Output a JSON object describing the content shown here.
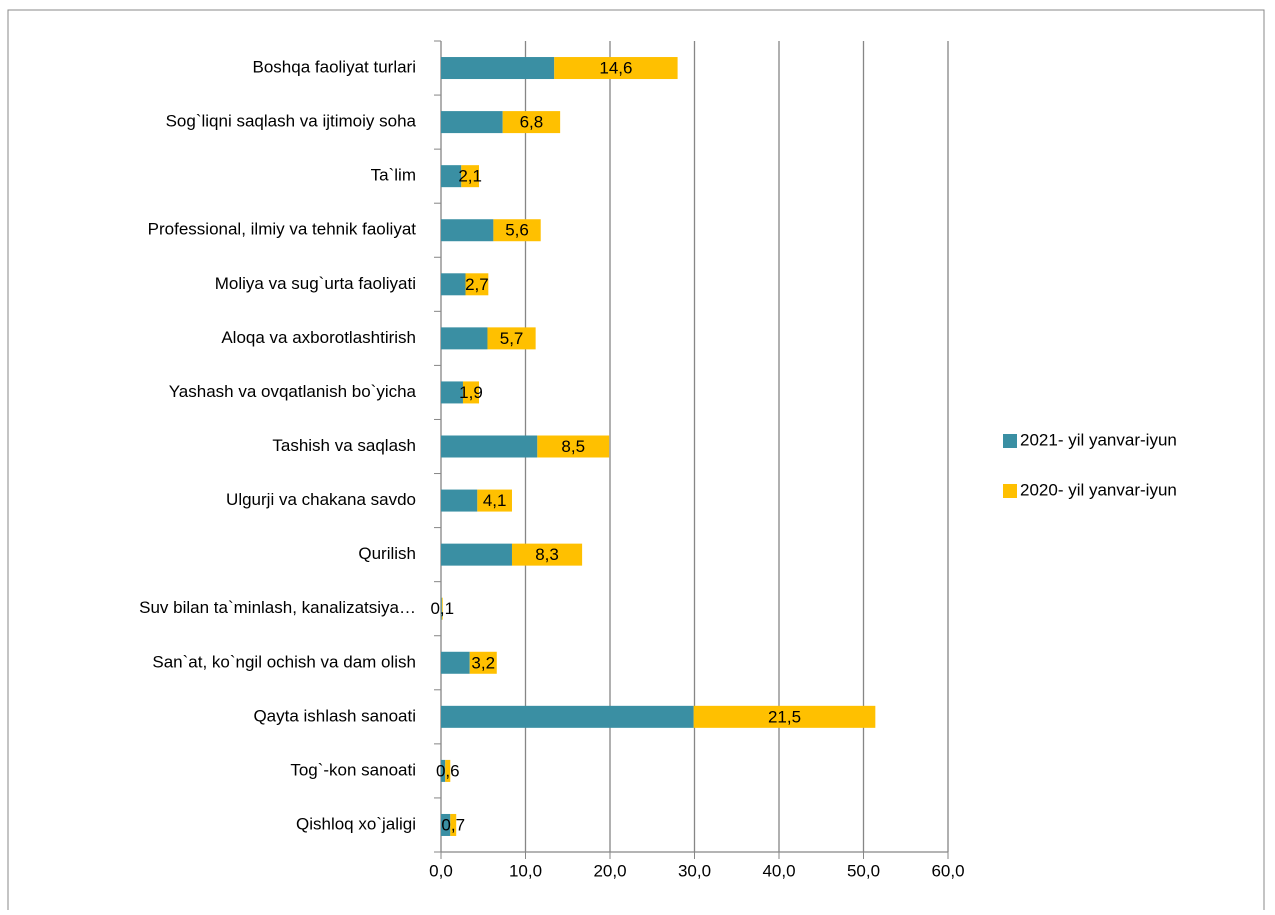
{
  "chart_data": {
    "type": "stacked-bar-horizontal",
    "categories": [
      "Boshqa faoliyat turlari",
      "Sog`liqni saqlash va ijtimoiy soha",
      "Ta`lim",
      "Professional, ilmiy va tehnik faoliyat",
      "Moliya va sug`urta faoliyati",
      "Aloqa va axborotlashtirish",
      "Yashash va ovqatlanish bo`yicha",
      "Tashish va saqlash",
      "Ulgurji va chakana savdo",
      "Qurilish",
      "Suv bilan ta`minlash, kanalizatsiya…",
      "San`at, ko`ngil ochish va dam olish",
      "Qayta ishlash sanoati",
      "Tog`-kon sanoati",
      "Qishloq xo`jaligi"
    ],
    "series": [
      {
        "name": "2021- yil yanvar-iyun",
        "color": "#3a8fa3",
        "values": [
          13.4,
          7.3,
          2.4,
          6.2,
          2.9,
          5.5,
          2.6,
          11.4,
          4.3,
          8.4,
          0.1,
          3.4,
          29.9,
          0.5,
          1.1
        ]
      },
      {
        "name": "2020- yil yanvar-iyun",
        "color": "#ffc000",
        "values": [
          14.6,
          6.8,
          2.1,
          5.6,
          2.7,
          5.7,
          1.9,
          8.5,
          4.1,
          8.3,
          0.1,
          3.2,
          21.5,
          0.6,
          0.7
        ],
        "value_labels": [
          "14,6",
          "6,8",
          "2,1",
          "5,6",
          "2,7",
          "5,7",
          "1,9",
          "8,5",
          "4,1",
          "8,3",
          "0,1",
          "3,2",
          "21,5",
          "0,6",
          "0,7"
        ]
      }
    ],
    "xlim": [
      0,
      60
    ],
    "xticks": [
      {
        "value": 0,
        "label": "0,0"
      },
      {
        "value": 10,
        "label": "10,0"
      },
      {
        "value": 20,
        "label": "20,0"
      },
      {
        "value": 30,
        "label": "30,0"
      },
      {
        "value": 40,
        "label": "40,0"
      },
      {
        "value": 50,
        "label": "50,0"
      },
      {
        "value": 60,
        "label": "60,0"
      }
    ],
    "grid": true,
    "legend": "right"
  }
}
